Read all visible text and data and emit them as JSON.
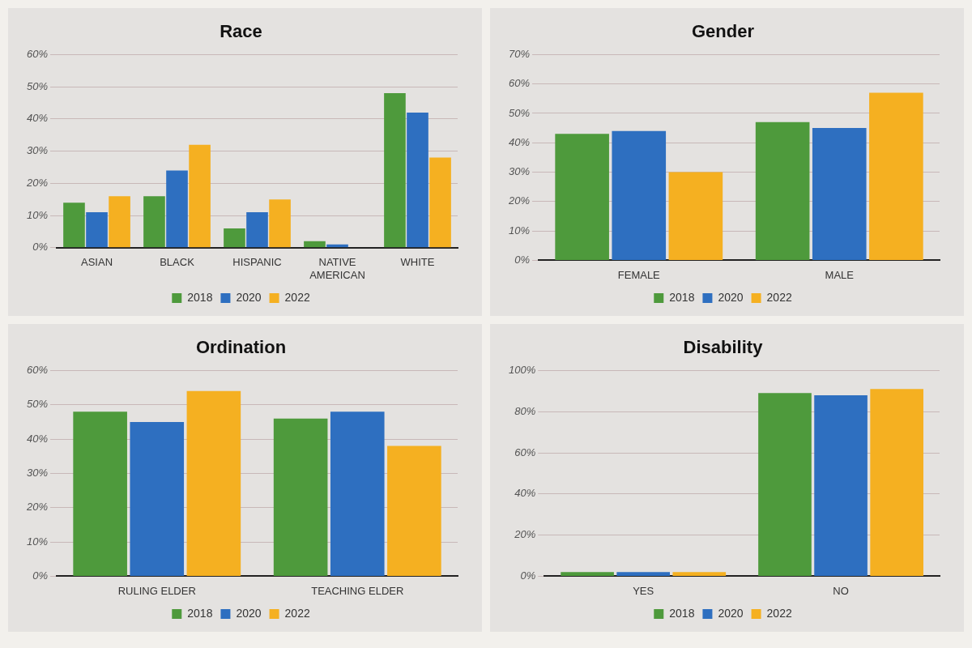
{
  "chart_data": [
    {
      "type": "bar",
      "title": "Race",
      "categories": [
        "ASIAN",
        "BLACK",
        "HISPANIC",
        "NATIVE AMERICAN",
        "WHITE"
      ],
      "series": [
        {
          "name": "2018",
          "color": "#4e9a3c",
          "values": [
            14,
            16,
            6,
            2,
            48
          ]
        },
        {
          "name": "2020",
          "color": "#2e6fc0",
          "values": [
            11,
            24,
            11,
            1,
            42
          ]
        },
        {
          "name": "2022",
          "color": "#f5b021",
          "values": [
            16,
            32,
            15,
            0,
            28
          ]
        }
      ],
      "ylim": [
        0,
        60
      ],
      "yticks": [
        {
          "value": 0,
          "label": "0%"
        },
        {
          "value": 10,
          "label": "10%"
        },
        {
          "value": 20,
          "label": "20%"
        },
        {
          "value": 30,
          "label": "30%"
        },
        {
          "value": 40,
          "label": "40%"
        },
        {
          "value": 50,
          "label": "50%"
        },
        {
          "value": 60,
          "label": "60%"
        }
      ],
      "grid": "y",
      "legend": "bottom"
    },
    {
      "type": "bar",
      "title": "Gender",
      "categories": [
        "FEMALE",
        "MALE"
      ],
      "series": [
        {
          "name": "2018",
          "color": "#4e9a3c",
          "values": [
            43,
            47
          ]
        },
        {
          "name": "2020",
          "color": "#2e6fc0",
          "values": [
            44,
            45
          ]
        },
        {
          "name": "2022",
          "color": "#f5b021",
          "values": [
            30,
            57
          ]
        }
      ],
      "ylim": [
        0,
        70
      ],
      "yticks": [
        {
          "value": 0,
          "label": "0%"
        },
        {
          "value": 10,
          "label": "10%"
        },
        {
          "value": 20,
          "label": "20%"
        },
        {
          "value": 30,
          "label": "30%"
        },
        {
          "value": 40,
          "label": "40%"
        },
        {
          "value": 50,
          "label": "50%"
        },
        {
          "value": 60,
          "label": "60%"
        },
        {
          "value": 70,
          "label": "70%"
        }
      ],
      "grid": "y",
      "legend": "bottom"
    },
    {
      "type": "bar",
      "title": "Ordination",
      "categories": [
        "RULING ELDER",
        "TEACHING ELDER"
      ],
      "series": [
        {
          "name": "2018",
          "color": "#4e9a3c",
          "values": [
            48,
            46
          ]
        },
        {
          "name": "2020",
          "color": "#2e6fc0",
          "values": [
            45,
            48
          ]
        },
        {
          "name": "2022",
          "color": "#f5b021",
          "values": [
            54,
            38
          ]
        }
      ],
      "ylim": [
        0,
        60
      ],
      "yticks": [
        {
          "value": 0,
          "label": "0%"
        },
        {
          "value": 10,
          "label": "10%"
        },
        {
          "value": 20,
          "label": "20%"
        },
        {
          "value": 30,
          "label": "30%"
        },
        {
          "value": 40,
          "label": "40%"
        },
        {
          "value": 50,
          "label": "50%"
        },
        {
          "value": 60,
          "label": "60%"
        }
      ],
      "grid": "y",
      "legend": "bottom"
    },
    {
      "type": "bar",
      "title": "Disability",
      "categories": [
        "YES",
        "NO"
      ],
      "series": [
        {
          "name": "2018",
          "color": "#4e9a3c",
          "values": [
            2,
            89
          ]
        },
        {
          "name": "2020",
          "color": "#2e6fc0",
          "values": [
            2,
            88
          ]
        },
        {
          "name": "2022",
          "color": "#f5b021",
          "values": [
            2,
            91
          ]
        }
      ],
      "ylim": [
        0,
        100
      ],
      "yticks": [
        {
          "value": 0,
          "label": "0%"
        },
        {
          "value": 20,
          "label": "20%"
        },
        {
          "value": 40,
          "label": "40%"
        },
        {
          "value": 60,
          "label": "60%"
        },
        {
          "value": 80,
          "label": "80%"
        },
        {
          "value": 100,
          "label": "100%"
        }
      ],
      "grid": "y",
      "legend": "bottom"
    }
  ]
}
